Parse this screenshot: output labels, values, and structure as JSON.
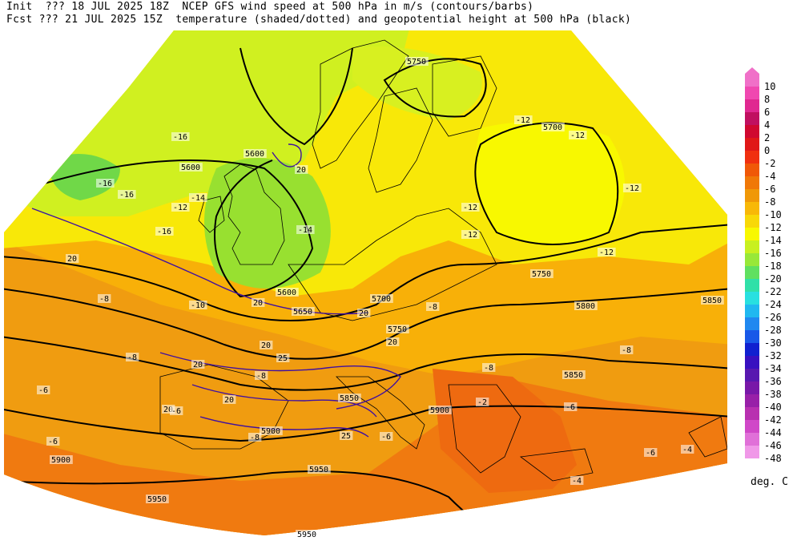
{
  "header": {
    "line1": "Init  ??? 18 JUL 2025 18Z  NCEP GFS wind speed at 500 hPa in m/s (contours/barbs)",
    "line2": "Fcst ??? 21 JUL 2025 15Z  temperature (shaded/dotted) and geopotential height at 500 hPa (black)"
  },
  "colorbar": {
    "unit": "deg. C",
    "levels": [
      "10",
      "8",
      "6",
      "4",
      "2",
      "0",
      "-2",
      "-4",
      "-6",
      "-8",
      "-10",
      "-12",
      "-14",
      "-16",
      "-18",
      "-20",
      "-22",
      "-24",
      "-26",
      "-28",
      "-30",
      "-32",
      "-34",
      "-36",
      "-38",
      "-40",
      "-42",
      "-44",
      "-46",
      "-48"
    ],
    "colors": [
      "#f070c8",
      "#f048b0",
      "#e02890",
      "#c01060",
      "#d00830",
      "#e01818",
      "#f03010",
      "#f05808",
      "#f07808",
      "#f09808",
      "#f8b808",
      "#f8d808",
      "#f8f800",
      "#c8f020",
      "#98e838",
      "#60e060",
      "#30e0a8",
      "#28e0e0",
      "#20b8f0",
      "#2088f0",
      "#1858e8",
      "#1020d0",
      "#3810c0",
      "#5818b0",
      "#7818a8",
      "#9820a8",
      "#b830b0",
      "#d048c8",
      "#e070d8",
      "#f098e8"
    ]
  },
  "map": {
    "colors": {
      "fill_warm": "#f08a18",
      "fill_mid": "#f8b008",
      "fill_cool": "#f8e808",
      "fill_yellowgreen": "#d0f020",
      "fill_green": "#98e030",
      "fill_green2": "#70d848",
      "fill_deep": "#e86a10",
      "height_contour": "#000000",
      "wind_contour": "#4010a0",
      "coast": "#000000",
      "barb": "#c8c8c8"
    },
    "height_labels": [
      "5750",
      "5700",
      "5600",
      "5600",
      "5600",
      "5650",
      "5700",
      "5750",
      "5750",
      "5800",
      "5850",
      "5850",
      "5900",
      "5900",
      "5850",
      "5900",
      "5950",
      "5950",
      "5950"
    ],
    "wind_labels": [
      "20",
      "20",
      "20",
      "20",
      "25",
      "20",
      "20",
      "20",
      "25",
      "20",
      "20"
    ],
    "temp_labels": [
      "-16",
      "-16",
      "-16",
      "-14",
      "-12",
      "-14",
      "-16",
      "-12",
      "-12",
      "-12",
      "-12",
      "-12",
      "-10",
      "-8",
      "-8",
      "-8",
      "-8",
      "-8",
      "-8",
      "-6",
      "-6",
      "-6",
      "-6",
      "-6",
      "-6",
      "-4",
      "-4",
      "-2",
      "-12",
      "-8"
    ]
  }
}
